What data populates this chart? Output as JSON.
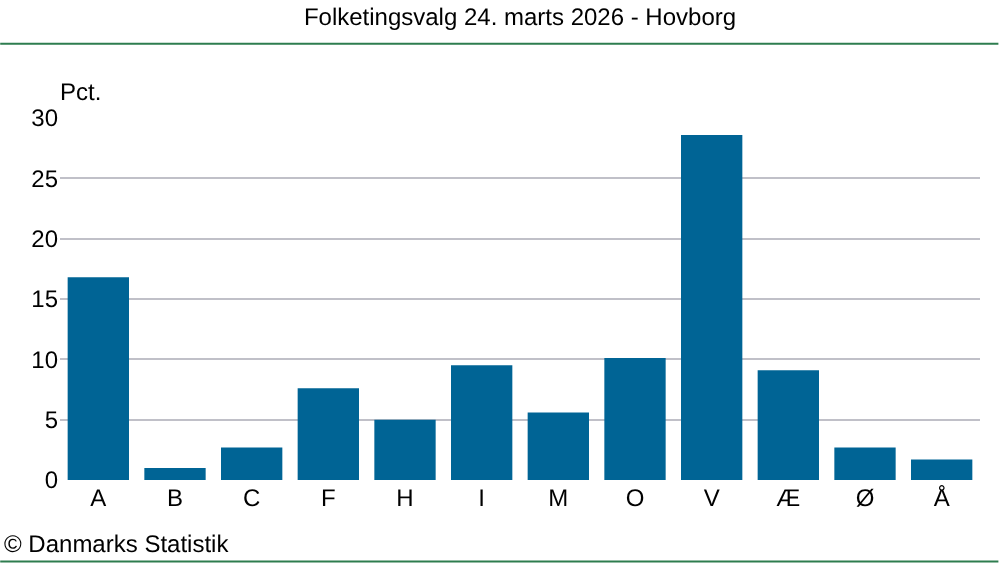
{
  "chart_data": {
    "type": "bar",
    "title": "Folketingsvalg 24. marts 2026 - Hovborg",
    "ylabel": "Pct.",
    "categories": [
      "A",
      "B",
      "C",
      "F",
      "H",
      "I",
      "M",
      "O",
      "V",
      "Æ",
      "Ø",
      "Å"
    ],
    "values": [
      16.8,
      1.0,
      2.7,
      7.6,
      5.0,
      9.5,
      5.6,
      10.1,
      28.6,
      9.1,
      2.7,
      1.7
    ],
    "color": "#006495",
    "ylim": [
      0,
      30
    ],
    "yticks": [
      0,
      5,
      10,
      15,
      20,
      25,
      30
    ],
    "grid": "y",
    "annotations": [
      "© Danmarks Statistik"
    ]
  }
}
